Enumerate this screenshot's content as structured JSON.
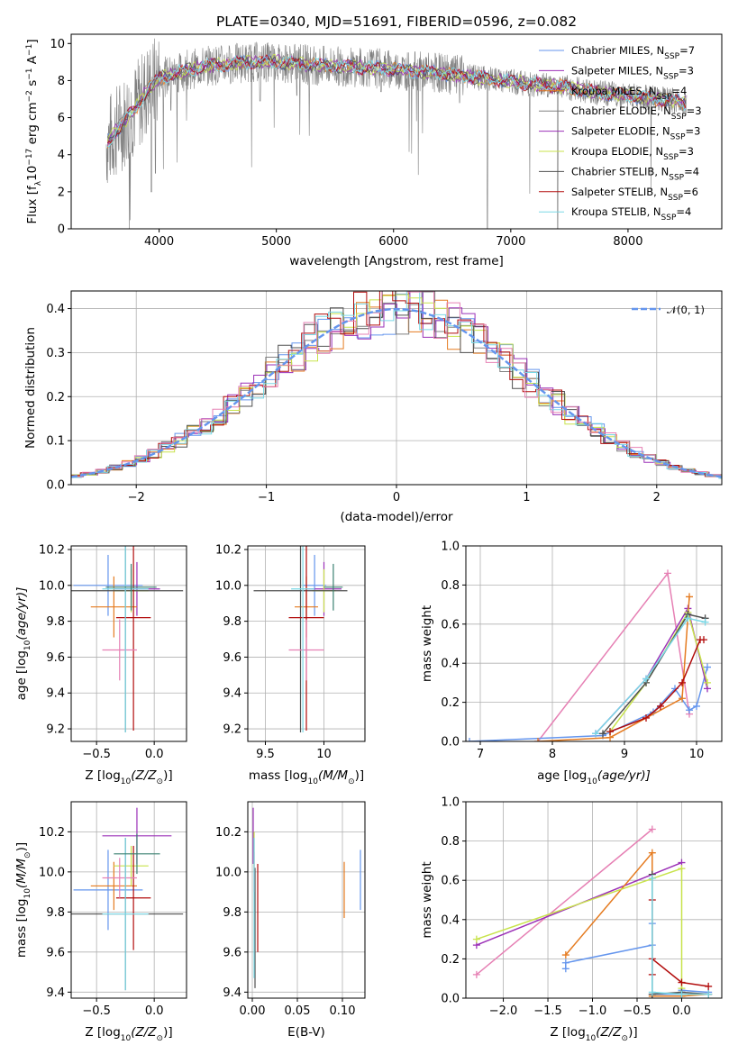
{
  "figure": {
    "title": "PLATE=0340, MJD=51691, FIBERID=0596, z=0.082"
  },
  "colors": {
    "blue": "#6495ed",
    "purple": "#9b30b7",
    "orange": "#e57b20",
    "gray": "#808080",
    "yellowgreen": "#c8e34b",
    "cyan": "#7ad8e6",
    "darkgray": "#505050",
    "red": "#b20c0c",
    "pink": "#e680b4",
    "teal": "#3a8070",
    "grid": "#b0b0b0"
  },
  "chart_data": [
    {
      "id": "spectrum",
      "type": "line",
      "title": "PLATE=0340, MJD=51691, FIBERID=0596, z=0.082",
      "xlabel": "wavelength [Angstrom, rest frame]",
      "ylabel_main": "Flux [f",
      "ylabel_sub1": "λ",
      "ylabel_mid": "10",
      "ylabel_sup1": "−17",
      "ylabel_rest": " erg cm",
      "ylabel_sup2": "−2",
      "ylabel_rest2": " s",
      "ylabel_sup3": "−1",
      "ylabel_rest3": " A",
      "ylabel_sup4": "−1",
      "ylabel_end": "]",
      "xlim": [
        3250,
        8800
      ],
      "ylim": [
        0,
        10.5
      ],
      "xticks": [
        4000,
        5000,
        6000,
        7000,
        8000
      ],
      "yticks": [
        0,
        2,
        4,
        6,
        8,
        10
      ],
      "legend_position": "right",
      "series": [
        {
          "label": "Chabrier MILES, N",
          "sub": "SSP",
          "tail": "=7",
          "color": "blue"
        },
        {
          "label": "Salpeter MILES, N",
          "sub": "SSP",
          "tail": "=3",
          "color": "purple"
        },
        {
          "label": "Kroupa MILES, N",
          "sub": "SSP",
          "tail": "=4",
          "color": "orange"
        },
        {
          "label": "Chabrier ELODIE, N",
          "sub": "SSP",
          "tail": "=3",
          "color": "gray"
        },
        {
          "label": "Salpeter ELODIE, N",
          "sub": "SSP",
          "tail": "=3",
          "color": "purple"
        },
        {
          "label": "Kroupa ELODIE, N",
          "sub": "SSP",
          "tail": "=3",
          "color": "yellowgreen"
        },
        {
          "label": "Chabrier STELIB, N",
          "sub": "SSP",
          "tail": "=4",
          "color": "darkgray"
        },
        {
          "label": "Salpeter STELIB, N",
          "sub": "SSP",
          "tail": "=6",
          "color": "red"
        },
        {
          "label": "Kroupa STELIB, N",
          "sub": "SSP",
          "tail": "=4",
          "color": "cyan"
        }
      ],
      "continuum": [
        [
          3550,
          4.6
        ],
        [
          3700,
          5.8
        ],
        [
          3800,
          6.5
        ],
        [
          3900,
          7.5
        ],
        [
          4000,
          8.1
        ],
        [
          4200,
          8.5
        ],
        [
          4400,
          8.8
        ],
        [
          4600,
          8.9
        ],
        [
          4800,
          9.0
        ],
        [
          5000,
          9.0
        ],
        [
          5200,
          8.9
        ],
        [
          5400,
          8.8
        ],
        [
          5600,
          8.75
        ],
        [
          5800,
          8.7
        ],
        [
          6000,
          8.6
        ],
        [
          6200,
          8.5
        ],
        [
          6400,
          8.4
        ],
        [
          6600,
          8.25
        ],
        [
          6800,
          8.1
        ],
        [
          7000,
          7.95
        ],
        [
          7200,
          7.8
        ],
        [
          7400,
          7.7
        ],
        [
          7600,
          7.5
        ],
        [
          7800,
          7.3
        ],
        [
          8000,
          7.2
        ],
        [
          8200,
          7.05
        ],
        [
          8400,
          6.9
        ],
        [
          8500,
          6.8
        ]
      ],
      "absorption_lines": [
        [
          3934,
          2.0
        ],
        [
          3969,
          3.0
        ],
        [
          4101,
          6.4
        ],
        [
          4861,
          6.9
        ],
        [
          5175,
          7.2
        ],
        [
          5893,
          7.4
        ],
        [
          6563,
          6.8
        ],
        [
          6800,
          0
        ],
        [
          7400,
          0
        ]
      ]
    },
    {
      "id": "residuals",
      "type": "area",
      "xlabel": "(data-model)/error",
      "ylabel": "Normed distribution",
      "xlim": [
        -2.5,
        2.5
      ],
      "ylim": [
        0,
        0.44
      ],
      "xticks": [
        -2,
        -1,
        0,
        1,
        2
      ],
      "xtick_labels": [
        "−2",
        "−1",
        "0",
        "1",
        "2"
      ],
      "yticks": [
        0.0,
        0.1,
        0.2,
        0.3,
        0.4
      ],
      "legend_label": "𝒩(0, 1)",
      "legend_position": "top-right",
      "n_series": 9
    },
    {
      "id": "age_vs_Z",
      "type": "scatter",
      "xlabel_pre": "Z [log",
      "xlabel_sub": "10",
      "xlabel_post": "(Z/Z",
      "xlabel_sub2": "⊙",
      "xlabel_end": ")]",
      "ylabel_pre": "age  [log",
      "ylabel_sub": "10",
      "ylabel_post": "(age/yr)]",
      "xlim": [
        -0.72,
        0.28
      ],
      "ylim": [
        9.13,
        10.22
      ],
      "xticks": [
        -0.5,
        0.0
      ],
      "xtick_labels": [
        "−0.5",
        "0.0"
      ],
      "yticks": [
        9.2,
        9.4,
        9.6,
        9.8,
        10.0,
        10.2
      ],
      "points": [
        {
          "x": -0.4,
          "xerr": 0.3,
          "y": 10.0,
          "yerr": 0.17,
          "color": "blue"
        },
        {
          "x": -0.15,
          "xerr": 0.2,
          "y": 9.98,
          "yerr": 0.15,
          "color": "purple"
        },
        {
          "x": -0.35,
          "xerr": 0.2,
          "y": 9.88,
          "yerr": 0.17,
          "color": "orange"
        },
        {
          "x": -0.2,
          "xerr": 0.15,
          "y": 9.97,
          "yerr": 0.12,
          "color": "yellowgreen"
        },
        {
          "x": -0.25,
          "xerr": 0.5,
          "y": 9.97,
          "yerr": 0.79,
          "color": "darkgray"
        },
        {
          "x": -0.18,
          "xerr": 0.15,
          "y": 9.82,
          "yerr": 0.63,
          "color": "red"
        },
        {
          "x": -0.3,
          "xerr": 0.15,
          "y": 9.64,
          "yerr": 0.17,
          "color": "pink"
        },
        {
          "x": -0.25,
          "xerr": 0.2,
          "y": 9.98,
          "yerr": 0.8,
          "color": "cyan"
        },
        {
          "x": -0.2,
          "xerr": 0.22,
          "y": 9.99,
          "yerr": 0.13,
          "color": "teal"
        }
      ]
    },
    {
      "id": "age_vs_mass",
      "type": "scatter",
      "xlabel_pre": "mass [log",
      "xlabel_sub": "10",
      "xlabel_post": "(M/M",
      "xlabel_sub2": "⊙",
      "xlabel_end": ")]",
      "xlim": [
        9.35,
        10.35
      ],
      "ylim": [
        9.13,
        10.22
      ],
      "xticks": [
        9.5,
        10.0
      ],
      "yticks": [
        9.2,
        9.4,
        9.6,
        9.8,
        10.0,
        10.2
      ],
      "points": [
        {
          "x": 9.92,
          "xerr": 0.1,
          "y": 10.0,
          "yerr": 0.17,
          "color": "blue"
        },
        {
          "x": 10.0,
          "xerr": 0.15,
          "y": 9.98,
          "yerr": 0.15,
          "color": "purple"
        },
        {
          "x": 9.85,
          "xerr": 0.1,
          "y": 9.88,
          "yerr": 0.17,
          "color": "orange"
        },
        {
          "x": 10.0,
          "xerr": 0.1,
          "y": 9.97,
          "yerr": 0.12,
          "color": "yellowgreen"
        },
        {
          "x": 9.8,
          "xerr": 0.4,
          "y": 9.97,
          "yerr": 0.79,
          "color": "darkgray"
        },
        {
          "x": 9.85,
          "xerr": 0.15,
          "y": 9.82,
          "yerr": 0.63,
          "color": "red"
        },
        {
          "x": 9.85,
          "xerr": 0.15,
          "y": 9.64,
          "yerr": 0.17,
          "color": "pink"
        },
        {
          "x": 9.82,
          "xerr": 0.1,
          "y": 9.98,
          "yerr": 0.8,
          "color": "cyan"
        },
        {
          "x": 10.08,
          "xerr": 0.08,
          "y": 9.99,
          "yerr": 0.13,
          "color": "teal"
        }
      ]
    },
    {
      "id": "weight_vs_age",
      "type": "line",
      "xlabel_pre": "age  [log",
      "xlabel_sub": "10",
      "xlabel_post": "(age/yr)]",
      "ylabel": "mass weight",
      "xlim": [
        6.8,
        10.35
      ],
      "ylim": [
        0,
        1.0
      ],
      "xticks": [
        7,
        8,
        9,
        10
      ],
      "yticks": [
        0.0,
        0.2,
        0.4,
        0.6,
        0.8,
        1.0
      ],
      "series": [
        {
          "color": "pink",
          "x": [
            7.8,
            9.6,
            9.9
          ],
          "y": [
            0.0,
            0.86,
            0.14
          ]
        },
        {
          "color": "blue",
          "x": [
            6.85,
            8.7,
            9.4,
            9.7,
            9.9,
            10.0,
            10.15
          ],
          "y": [
            0.0,
            0.03,
            0.15,
            0.27,
            0.16,
            0.18,
            0.38
          ]
        },
        {
          "color": "purple",
          "x": [
            8.6,
            9.3,
            9.88,
            10.15
          ],
          "y": [
            0.04,
            0.32,
            0.68,
            0.27
          ]
        },
        {
          "color": "orange",
          "x": [
            7.8,
            8.8,
            9.8,
            9.9
          ],
          "y": [
            0.0,
            0.02,
            0.22,
            0.74
          ]
        },
        {
          "color": "yellowgreen",
          "x": [
            8.8,
            9.3,
            9.88,
            10.15
          ],
          "y": [
            0.05,
            0.3,
            0.66,
            0.3
          ]
        },
        {
          "color": "darkgray",
          "x": [
            8.7,
            9.3,
            9.88,
            10.12
          ],
          "y": [
            0.04,
            0.3,
            0.65,
            0.63
          ]
        },
        {
          "color": "red",
          "x": [
            8.8,
            9.3,
            9.5,
            9.8,
            10.05,
            10.1
          ],
          "y": [
            0.05,
            0.12,
            0.18,
            0.3,
            0.52,
            0.52
          ]
        },
        {
          "color": "cyan",
          "x": [
            8.6,
            9.3,
            9.88,
            10.12
          ],
          "y": [
            0.04,
            0.32,
            0.63,
            0.61
          ]
        }
      ]
    },
    {
      "id": "mass_vs_Z",
      "type": "scatter",
      "xlabel_pre": "Z [log",
      "xlabel_sub": "10",
      "xlabel_post": "(Z/Z",
      "xlabel_sub2": "⊙",
      "xlabel_end": ")]",
      "ylabel_pre": "mass [log",
      "ylabel_sub": "10",
      "ylabel_post": "(M/M",
      "ylabel_sub2": "⊙",
      "ylabel_end": ")]",
      "xlim": [
        -0.72,
        0.28
      ],
      "ylim": [
        9.37,
        10.35
      ],
      "xticks": [
        -0.5,
        0.0
      ],
      "xtick_labels": [
        "−0.5",
        "0.0"
      ],
      "yticks": [
        9.4,
        9.6,
        9.8,
        10.0,
        10.2
      ],
      "points": [
        {
          "x": -0.4,
          "xerr": 0.3,
          "y": 9.91,
          "yerr": 0.2,
          "color": "blue"
        },
        {
          "x": -0.15,
          "xerr": 0.3,
          "y": 10.18,
          "yerr": 0.14,
          "color": "purple"
        },
        {
          "x": -0.35,
          "xerr": 0.2,
          "y": 9.93,
          "yerr": 0.12,
          "color": "orange"
        },
        {
          "x": -0.2,
          "xerr": 0.15,
          "y": 10.03,
          "yerr": 0.1,
          "color": "yellowgreen"
        },
        {
          "x": -0.25,
          "xerr": 0.5,
          "y": 9.79,
          "yerr": 0.38,
          "color": "darkgray"
        },
        {
          "x": -0.18,
          "xerr": 0.15,
          "y": 9.87,
          "yerr": 0.26,
          "color": "red"
        },
        {
          "x": -0.3,
          "xerr": 0.15,
          "y": 9.97,
          "yerr": 0.1,
          "color": "pink"
        },
        {
          "x": -0.25,
          "xerr": 0.2,
          "y": 9.79,
          "yerr": 0.38,
          "color": "cyan"
        },
        {
          "x": -0.15,
          "xerr": 0.2,
          "y": 10.09,
          "yerr": 0.1,
          "color": "teal"
        }
      ]
    },
    {
      "id": "mass_vs_ebv",
      "type": "scatter",
      "xlabel": "E(B-V)",
      "xlim": [
        -0.005,
        0.125
      ],
      "ylim": [
        9.37,
        10.35
      ],
      "xticks": [
        0.0,
        0.05,
        0.1
      ],
      "xtick_labels": [
        "0.00",
        "0.05",
        "0.10"
      ],
      "yticks": [
        9.4,
        9.6,
        9.8,
        10.0,
        10.2
      ],
      "points": [
        {
          "x": 0.12,
          "y": 9.96,
          "yerr": 0.15,
          "color": "blue"
        },
        {
          "x": 0.001,
          "y": 10.18,
          "yerr": 0.14,
          "color": "purple"
        },
        {
          "x": 0.102,
          "y": 9.91,
          "yerr": 0.14,
          "color": "orange"
        },
        {
          "x": 0.002,
          "y": 10.1,
          "yerr": 0.1,
          "color": "yellowgreen"
        },
        {
          "x": 0.003,
          "y": 9.72,
          "yerr": 0.3,
          "color": "darkgray"
        },
        {
          "x": 0.006,
          "y": 9.82,
          "yerr": 0.22,
          "color": "red"
        },
        {
          "x": 0.002,
          "y": 10.0,
          "yerr": 0.1,
          "color": "pink"
        },
        {
          "x": 0.002,
          "y": 9.82,
          "yerr": 0.35,
          "color": "cyan"
        }
      ]
    },
    {
      "id": "weight_vs_Z",
      "type": "line",
      "xlabel_pre": "Z [log",
      "xlabel_sub": "10",
      "xlabel_post": "(Z/Z",
      "xlabel_sub2": "⊙",
      "xlabel_end": ")]",
      "ylabel": "mass weight",
      "xlim": [
        -2.42,
        0.45
      ],
      "ylim": [
        0,
        1.0
      ],
      "xticks": [
        -2.0,
        -1.5,
        -1.0,
        -0.5,
        0.0
      ],
      "xtick_labels": [
        "−2.0",
        "−1.5",
        "−1.0",
        "−0.5",
        "0.0"
      ],
      "yticks": [
        0.0,
        0.2,
        0.4,
        0.6,
        0.8,
        1.0
      ],
      "series": [
        {
          "color": "pink",
          "x": [
            -2.3,
            -0.33
          ],
          "y": [
            0.12,
            0.86
          ]
        },
        {
          "color": "blue",
          "x": [
            -1.3,
            -1.3,
            -0.33,
            -0.33,
            -0.33,
            0.0,
            0.0,
            0.3
          ],
          "y": [
            0.15,
            0.18,
            0.27,
            0.38,
            0.02,
            0.02,
            0.04,
            0.03
          ]
        },
        {
          "color": "purple",
          "x": [
            -2.3,
            0.0
          ],
          "y": [
            0.27,
            0.69
          ]
        },
        {
          "color": "orange",
          "x": [
            -1.3,
            -0.33,
            -0.33,
            0.0,
            0.3
          ],
          "y": [
            0.22,
            0.74,
            0.01,
            0.01,
            0.02
          ]
        },
        {
          "color": "yellowgreen",
          "x": [
            -2.3,
            0.0,
            0.0
          ],
          "y": [
            0.3,
            0.66,
            0.05
          ]
        },
        {
          "color": "darkgray",
          "x": [
            -0.33,
            -0.33,
            0.0,
            0.3
          ],
          "y": [
            0.63,
            0.02,
            0.03,
            0.02
          ]
        },
        {
          "color": "red",
          "x": [
            -0.33,
            -0.33,
            -0.33,
            0.0,
            0.3
          ],
          "y": [
            0.5,
            0.12,
            0.2,
            0.08,
            0.06
          ]
        },
        {
          "color": "cyan",
          "x": [
            -0.33,
            -0.33,
            0.0,
            0.3
          ],
          "y": [
            0.61,
            0.03,
            0.02,
            0.02
          ]
        }
      ]
    }
  ]
}
